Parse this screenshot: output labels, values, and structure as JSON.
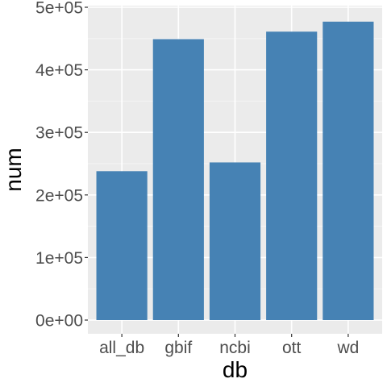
{
  "chart_data": {
    "type": "bar",
    "categories": [
      "all_db",
      "gbif",
      "ncbi",
      "ott",
      "wd"
    ],
    "values": [
      238000,
      449000,
      252000,
      461000,
      477000
    ],
    "xlabel": "db",
    "ylabel": "num",
    "ylim": [
      0,
      500000
    ],
    "y_ticks": [
      0,
      100000,
      200000,
      300000,
      400000,
      500000
    ],
    "y_tick_labels": [
      "0e+00",
      "1e+05",
      "2e+05",
      "3e+05",
      "4e+05",
      "5e+05"
    ],
    "grid": true,
    "legend": "none",
    "colors": {
      "bar": "#4682B4",
      "panel": "#EBEBEB",
      "grid_major": "#FFFFFF",
      "grid_minor": "#F5F5F5",
      "tick": "#333333"
    }
  }
}
